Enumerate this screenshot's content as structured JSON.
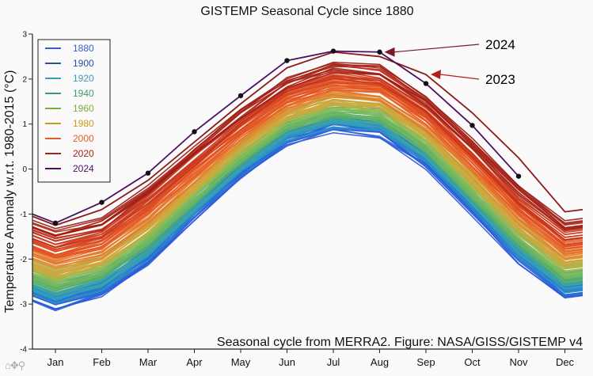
{
  "chart_data": {
    "type": "line",
    "title": "GISTEMP Seasonal Cycle since 1880",
    "xlabel": "",
    "ylabel": "Temperature Anomaly w.r.t. 1980-2015 (°C)",
    "categories": [
      "Jan",
      "Feb",
      "Mar",
      "Apr",
      "May",
      "Jun",
      "Jul",
      "Aug",
      "Sep",
      "Oct",
      "Nov",
      "Dec"
    ],
    "ylim": [
      -4,
      3
    ],
    "yticks": [
      3,
      2,
      1,
      0,
      -1,
      -2,
      -3,
      -4
    ],
    "grid": false,
    "legend_position": "top-left",
    "legend": [
      {
        "label": "1880",
        "color": "#3a5fcd"
      },
      {
        "label": "1900",
        "color": "#2b4f9e"
      },
      {
        "label": "1920",
        "color": "#3a9bb8"
      },
      {
        "label": "1940",
        "color": "#3f9b6a"
      },
      {
        "label": "1960",
        "color": "#7cab3a"
      },
      {
        "label": "1980",
        "color": "#c99a1c"
      },
      {
        "label": "2000",
        "color": "#e0602a"
      },
      {
        "label": "2020",
        "color": "#a3261a"
      },
      {
        "label": "2024",
        "color": "#4b1060"
      }
    ],
    "ensemble": {
      "description": "One line per year 1880-2024, colored by year",
      "oldest_approx": [
        -3.0,
        -2.7,
        -2.0,
        -1.0,
        -0.1,
        0.65,
        0.95,
        0.85,
        0.15,
        -0.9,
        -1.95,
        -2.75
      ],
      "recent_approx": [
        -1.45,
        -1.2,
        -0.45,
        0.4,
        1.25,
        1.95,
        2.3,
        2.2,
        1.55,
        0.6,
        -0.45,
        -1.25
      ]
    },
    "series": [
      {
        "name": "2024",
        "color": "#4b1060",
        "markers": true,
        "values": [
          -1.2,
          -0.74,
          -0.09,
          0.83,
          1.63,
          2.41,
          2.62,
          2.6,
          1.9,
          0.97,
          -0.16,
          null
        ],
        "start_edge_value": -1.0
      },
      {
        "name": "2023",
        "color": "#8b1a1a",
        "markers": false,
        "values": [
          -1.25,
          -0.9,
          -0.25,
          0.6,
          1.45,
          2.25,
          2.6,
          2.5,
          2.1,
          1.25,
          0.25,
          -0.95
        ]
      }
    ],
    "annotations": [
      {
        "text": "2024",
        "points_to": {
          "month": "Aug",
          "value": 2.6
        }
      },
      {
        "text": "2023",
        "points_to": {
          "month": "Sep",
          "value": 2.1
        }
      },
      {
        "text": "Seasonal cycle from MERRA2. Figure: NASA/GISS/GISTEMP v4"
      }
    ]
  },
  "toolbar": {
    "home_icon": "⌂",
    "pan_icon": "✥",
    "zoom_icon": "⚲"
  }
}
